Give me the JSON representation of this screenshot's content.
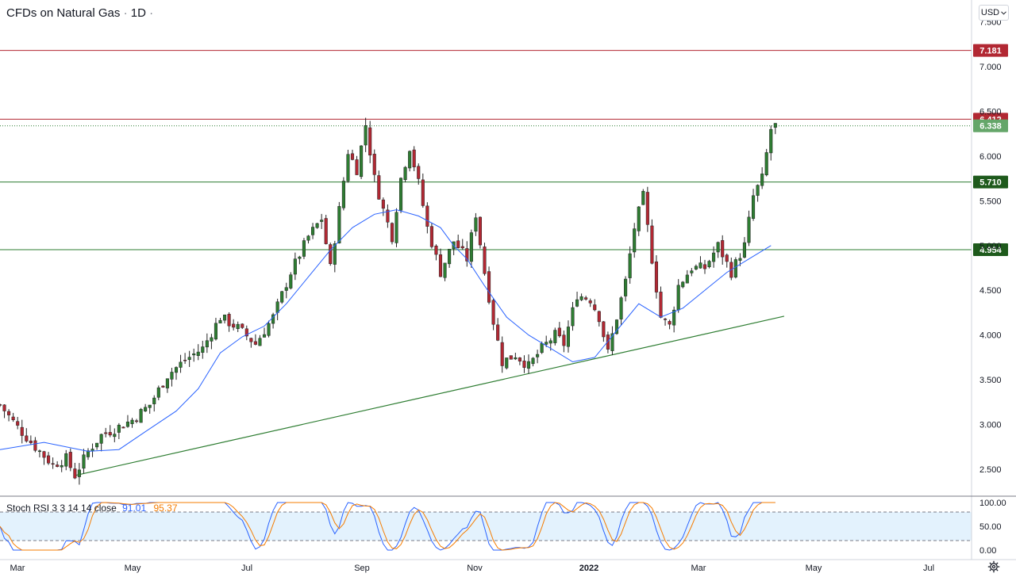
{
  "header": {
    "symbol": "CFDs on Natural Gas",
    "separator": "·",
    "interval": "1D",
    "currency": "USD"
  },
  "indicator": {
    "name": "Stoch RSI 3 3 14 14 close",
    "k_value": "91.01",
    "d_value": "95.37"
  },
  "chart_data": {
    "type": "candlestick",
    "x_labels": [
      "Mar",
      "May",
      "Jul",
      "Sep",
      "Nov",
      "2022",
      "Mar",
      "May",
      "Jul"
    ],
    "y_ticks": [
      "2.500",
      "3.000",
      "3.500",
      "4.000",
      "4.500",
      "5.000",
      "5.500",
      "6.000",
      "6.500",
      "7.000",
      "7.500"
    ],
    "ylim": [
      2.3,
      7.6
    ],
    "price_labels": [
      {
        "value": "7.181",
        "kind": "resistance"
      },
      {
        "value": "6.412",
        "kind": "resistance"
      },
      {
        "value": "6.338",
        "kind": "last"
      },
      {
        "value": "5.710",
        "kind": "support"
      },
      {
        "value": "4.954",
        "kind": "support"
      }
    ],
    "close_path": [
      [
        0,
        3.22
      ],
      [
        4,
        2.97
      ],
      [
        8,
        2.75
      ],
      [
        12,
        2.55
      ],
      [
        15,
        2.62
      ],
      [
        17,
        2.43
      ],
      [
        20,
        2.7
      ],
      [
        23,
        2.88
      ],
      [
        26,
        2.95
      ],
      [
        30,
        3.05
      ],
      [
        34,
        3.22
      ],
      [
        38,
        3.55
      ],
      [
        42,
        3.72
      ],
      [
        46,
        3.85
      ],
      [
        50,
        4.2
      ],
      [
        54,
        4.08
      ],
      [
        58,
        3.9
      ],
      [
        62,
        4.2
      ],
      [
        66,
        4.7
      ],
      [
        70,
        5.1
      ],
      [
        73,
        5.3
      ],
      [
        75,
        4.75
      ],
      [
        77,
        5.4
      ],
      [
        79,
        6.05
      ],
      [
        81,
        5.85
      ],
      [
        83,
        6.35
      ],
      [
        85,
        5.75
      ],
      [
        87,
        5.4
      ],
      [
        89,
        5.1
      ],
      [
        91,
        5.75
      ],
      [
        93,
        6.1
      ],
      [
        95,
        5.7
      ],
      [
        97,
        5.2
      ],
      [
        100,
        4.7
      ],
      [
        103,
        5.05
      ],
      [
        106,
        4.85
      ],
      [
        108,
        5.35
      ],
      [
        110,
        4.7
      ],
      [
        112,
        4.15
      ],
      [
        114,
        3.7
      ],
      [
        117,
        3.78
      ],
      [
        120,
        3.65
      ],
      [
        123,
        3.85
      ],
      [
        126,
        4.0
      ],
      [
        128,
        3.9
      ],
      [
        131,
        4.45
      ],
      [
        134,
        4.4
      ],
      [
        136,
        4.2
      ],
      [
        138,
        3.8
      ],
      [
        140,
        4.2
      ],
      [
        142,
        4.6
      ],
      [
        144,
        5.2
      ],
      [
        146,
        5.55
      ],
      [
        148,
        4.85
      ],
      [
        150,
        4.2
      ],
      [
        152,
        4.1
      ],
      [
        154,
        4.55
      ],
      [
        157,
        4.75
      ],
      [
        160,
        4.75
      ],
      [
        163,
        5.0
      ],
      [
        166,
        4.7
      ],
      [
        169,
        5.0
      ],
      [
        171,
        5.55
      ],
      [
        173,
        5.75
      ],
      [
        175,
        6.3
      ],
      [
        176,
        6.338
      ]
    ],
    "sma_path": [
      [
        0,
        2.72
      ],
      [
        10,
        2.8
      ],
      [
        20,
        2.7
      ],
      [
        27,
        2.72
      ],
      [
        33,
        2.92
      ],
      [
        40,
        3.15
      ],
      [
        45,
        3.4
      ],
      [
        50,
        3.8
      ],
      [
        55,
        3.98
      ],
      [
        60,
        4.1
      ],
      [
        65,
        4.35
      ],
      [
        70,
        4.65
      ],
      [
        75,
        4.95
      ],
      [
        80,
        5.2
      ],
      [
        85,
        5.35
      ],
      [
        90,
        5.4
      ],
      [
        95,
        5.33
      ],
      [
        100,
        5.2
      ],
      [
        103,
        5.0
      ],
      [
        106,
        4.85
      ],
      [
        110,
        4.55
      ],
      [
        115,
        4.2
      ],
      [
        120,
        4.0
      ],
      [
        125,
        3.85
      ],
      [
        130,
        3.7
      ],
      [
        135,
        3.75
      ],
      [
        140,
        4.05
      ],
      [
        145,
        4.35
      ],
      [
        150,
        4.2
      ],
      [
        155,
        4.3
      ],
      [
        160,
        4.5
      ],
      [
        165,
        4.7
      ],
      [
        170,
        4.85
      ],
      [
        175,
        5.0
      ]
    ],
    "trendline": {
      "from": [
        17,
        2.43
      ],
      "to": [
        178,
        4.21
      ]
    },
    "stoch_bands": {
      "upper": 80,
      "lower": 20,
      "ylim": [
        0,
        100
      ],
      "ticks": [
        "100.00",
        "50.00",
        "0.00"
      ]
    }
  }
}
